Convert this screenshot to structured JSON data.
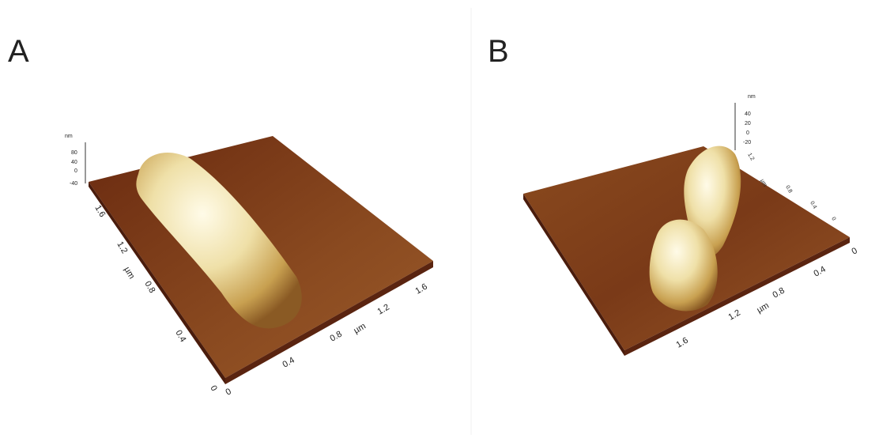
{
  "panels": [
    {
      "label": "A",
      "z_axis": {
        "unit": "nm",
        "ticks": [
          "80",
          "40",
          "0",
          "-40"
        ]
      },
      "y_axis": {
        "unit": "µm",
        "ticks": [
          "1.6",
          "1.2",
          "0.8",
          "0.4",
          "0"
        ]
      },
      "x_axis": {
        "unit": "µm",
        "ticks": [
          "0",
          "0.4",
          "0.8",
          "1.2",
          "1.6"
        ]
      }
    },
    {
      "label": "B",
      "z_axis": {
        "unit": "nm",
        "ticks": [
          "40",
          "20",
          "0",
          "-20"
        ]
      },
      "y_axis": {
        "unit": "µm",
        "ticks": [
          "1.2",
          "0.8",
          "0.4",
          "0"
        ]
      },
      "x_axis": {
        "unit": "µm",
        "ticks": [
          "1.6",
          "1.2",
          "0.8",
          "0.4",
          "0"
        ]
      }
    }
  ]
}
